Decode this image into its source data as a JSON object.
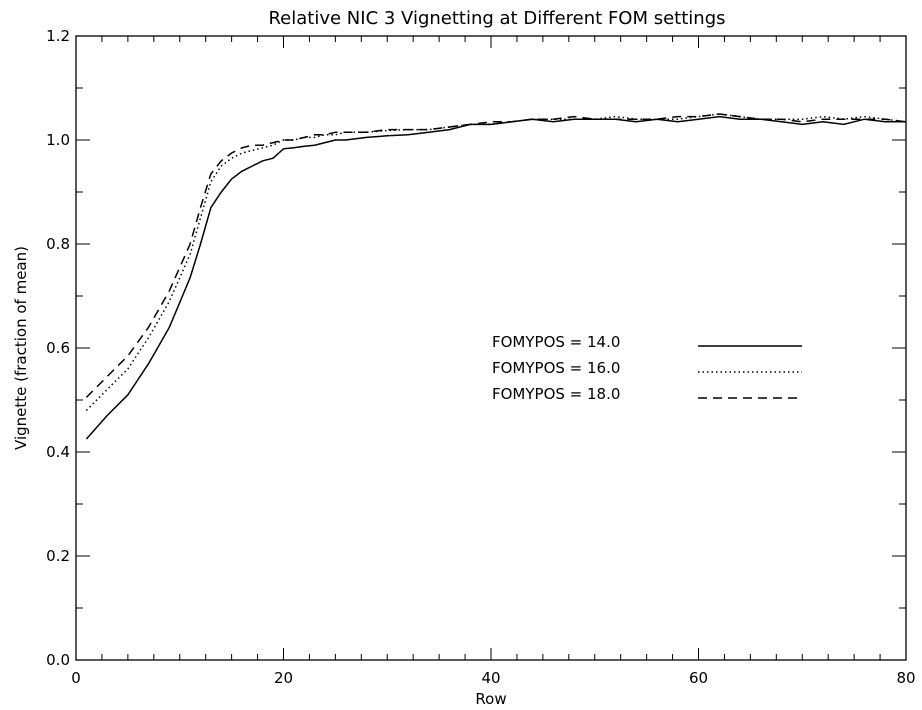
{
  "chart_data": {
    "type": "line",
    "title": "Relative NIC 3 Vignetting at Different FOM settings",
    "xlabel": "Row",
    "ylabel": "Vignette (fraction of mean)",
    "xlim": [
      0,
      80
    ],
    "ylim": [
      0.0,
      1.2
    ],
    "xticks": [
      0,
      20,
      40,
      60,
      80
    ],
    "yticks": [
      0.0,
      0.2,
      0.4,
      0.6,
      0.8,
      1.0,
      1.2
    ],
    "grid": false,
    "legend_position": "center-right",
    "series": [
      {
        "name": "FOMYPOS = 14.0",
        "style": "solid",
        "x": [
          1,
          3,
          5,
          7,
          9,
          11,
          12,
          13,
          14,
          15,
          16,
          17,
          18,
          19,
          20,
          21,
          22,
          23,
          24,
          25,
          26,
          28,
          30,
          32,
          34,
          36,
          38,
          40,
          42,
          44,
          46,
          48,
          50,
          52,
          54,
          56,
          58,
          60,
          62,
          64,
          66,
          68,
          70,
          72,
          74,
          76,
          78,
          80
        ],
        "y": [
          0.425,
          0.47,
          0.51,
          0.57,
          0.64,
          0.735,
          0.8,
          0.87,
          0.9,
          0.925,
          0.94,
          0.95,
          0.96,
          0.965,
          0.983,
          0.985,
          0.988,
          0.99,
          0.995,
          1.0,
          1.0,
          1.005,
          1.008,
          1.01,
          1.015,
          1.02,
          1.03,
          1.03,
          1.035,
          1.04,
          1.035,
          1.04,
          1.04,
          1.04,
          1.035,
          1.04,
          1.035,
          1.04,
          1.045,
          1.04,
          1.04,
          1.035,
          1.03,
          1.035,
          1.03,
          1.04,
          1.035,
          1.035
        ]
      },
      {
        "name": "FOMYPOS = 16.0",
        "style": "dotted",
        "x": [
          1,
          3,
          5,
          7,
          9,
          11,
          12,
          13,
          14,
          15,
          16,
          17,
          18,
          19,
          20,
          21,
          22,
          23,
          24,
          25,
          26,
          28,
          30,
          32,
          34,
          36,
          38,
          40,
          42,
          44,
          46,
          48,
          50,
          52,
          54,
          56,
          58,
          60,
          62,
          64,
          66,
          68,
          70,
          72,
          74,
          76,
          78,
          80
        ],
        "y": [
          0.48,
          0.52,
          0.56,
          0.62,
          0.69,
          0.78,
          0.85,
          0.92,
          0.95,
          0.965,
          0.975,
          0.98,
          0.985,
          0.99,
          1.0,
          1.0,
          1.005,
          1.005,
          1.01,
          1.01,
          1.015,
          1.015,
          1.018,
          1.02,
          1.02,
          1.025,
          1.03,
          1.03,
          1.035,
          1.04,
          1.04,
          1.04,
          1.04,
          1.045,
          1.04,
          1.04,
          1.04,
          1.045,
          1.05,
          1.045,
          1.04,
          1.04,
          1.04,
          1.045,
          1.04,
          1.045,
          1.04,
          1.035
        ]
      },
      {
        "name": "FOMYPOS = 18.0",
        "style": "dashed",
        "x": [
          1,
          3,
          5,
          7,
          9,
          11,
          12,
          13,
          14,
          15,
          16,
          17,
          18,
          19,
          20,
          21,
          22,
          23,
          24,
          25,
          26,
          28,
          30,
          32,
          34,
          36,
          38,
          40,
          42,
          44,
          46,
          48,
          50,
          52,
          54,
          56,
          58,
          60,
          62,
          64,
          66,
          68,
          70,
          72,
          74,
          76,
          78,
          80
        ],
        "y": [
          0.505,
          0.545,
          0.585,
          0.64,
          0.71,
          0.8,
          0.87,
          0.935,
          0.96,
          0.975,
          0.985,
          0.99,
          0.99,
          0.995,
          1.0,
          1.0,
          1.005,
          1.01,
          1.01,
          1.015,
          1.015,
          1.015,
          1.02,
          1.02,
          1.02,
          1.025,
          1.03,
          1.035,
          1.035,
          1.04,
          1.04,
          1.045,
          1.04,
          1.04,
          1.04,
          1.04,
          1.045,
          1.045,
          1.05,
          1.045,
          1.04,
          1.04,
          1.035,
          1.04,
          1.04,
          1.04,
          1.04,
          1.035
        ]
      }
    ]
  }
}
